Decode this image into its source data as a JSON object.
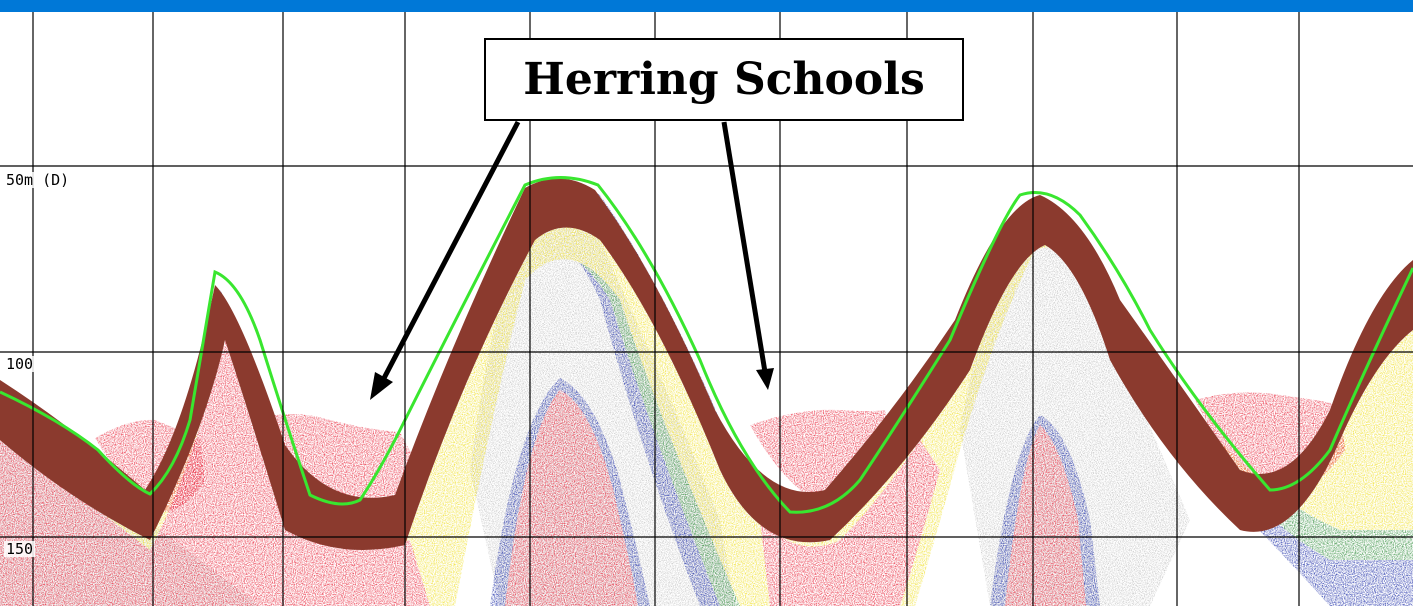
{
  "title": "Herring Schools",
  "depth_labels": [
    "50m (D)",
    "100",
    "150"
  ],
  "colors": {
    "top_bar": "#0078d7",
    "bottom_line": "#39e62f",
    "bottom_fill": "#8b3a2e",
    "strong_echo": "#e8283c",
    "medium_echo": "#f0e02a",
    "weak_echo": "#2f8c3a",
    "faint_echo": "#1f2fa8",
    "noise": "#8a8a8a",
    "grid": "#000000"
  }
}
